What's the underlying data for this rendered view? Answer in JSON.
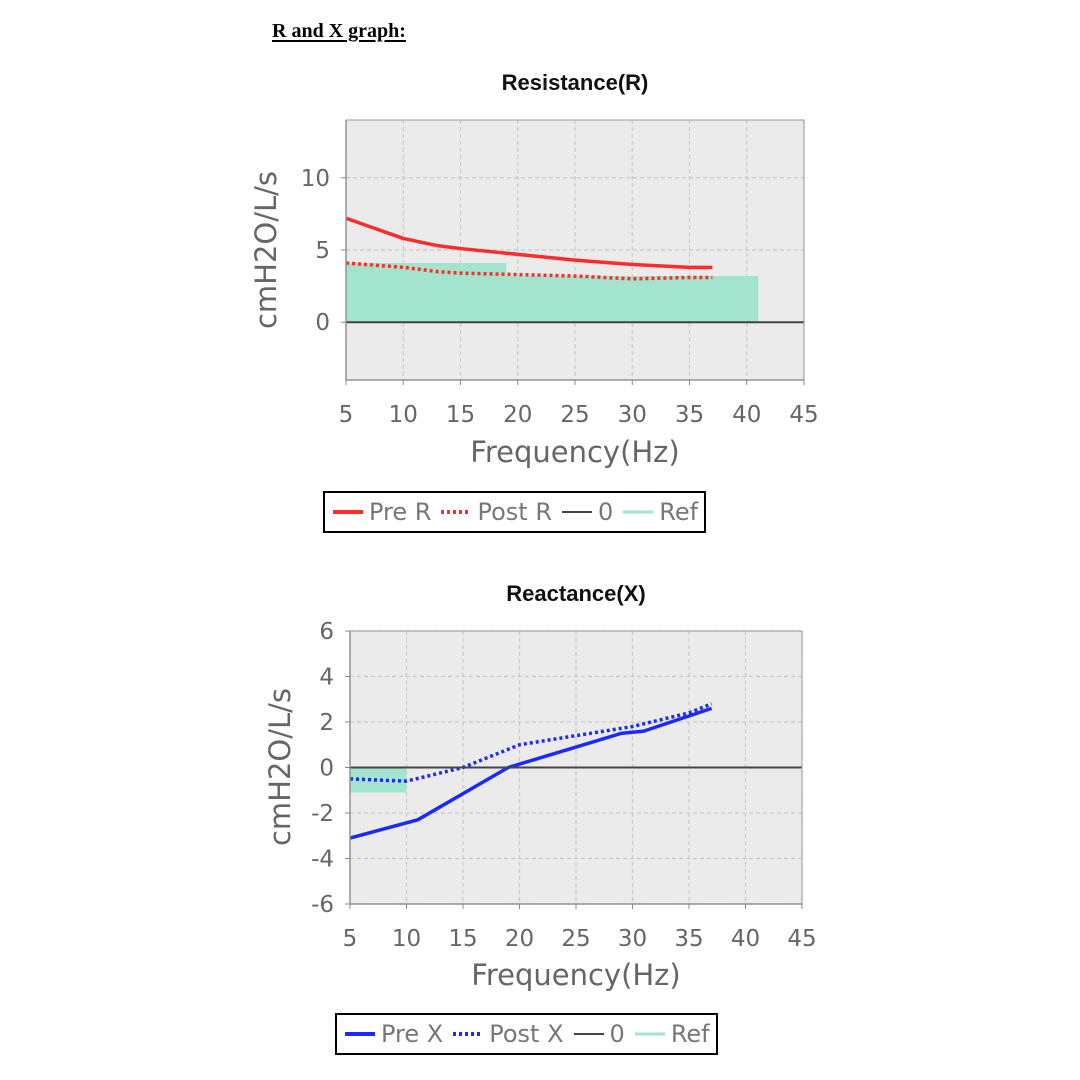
{
  "heading": "R and X graph:",
  "chart_data": [
    {
      "type": "line",
      "title": "Resistance(R)",
      "xlabel": "Frequency(Hz)",
      "ylabel": "cmH2O/L/s",
      "xlim": [
        5,
        45
      ],
      "ylim": [
        -4,
        14
      ],
      "xticks": [
        "5",
        "10",
        "15",
        "20",
        "25",
        "30",
        "35",
        "40",
        "45"
      ],
      "xtick_values": [
        5,
        10,
        15,
        20,
        25,
        30,
        35,
        40,
        45
      ],
      "yticks": [
        "0",
        "5",
        "10"
      ],
      "ytick_values": [
        0,
        5,
        10
      ],
      "grid": true,
      "series": [
        {
          "name": "Pre R",
          "style": "solid",
          "color": "#ff2a2a",
          "x": [
            5,
            10,
            13,
            15,
            20,
            25,
            30,
            35,
            37
          ],
          "y": [
            7.2,
            5.8,
            5.3,
            5.1,
            4.7,
            4.3,
            4.0,
            3.8,
            3.8
          ]
        },
        {
          "name": "Post R",
          "style": "dotted",
          "color": "#ff2a2a",
          "x": [
            5,
            10,
            13,
            15,
            20,
            25,
            30,
            35,
            37
          ],
          "y": [
            4.1,
            3.8,
            3.5,
            3.4,
            3.3,
            3.2,
            3.0,
            3.1,
            3.1
          ]
        },
        {
          "name": "0",
          "style": "solid",
          "color": "#444444",
          "x": [
            5,
            45
          ],
          "y": [
            0,
            0
          ]
        }
      ],
      "ref_bands": [
        {
          "x": [
            5,
            19
          ],
          "y": [
            0,
            4.1
          ]
        },
        {
          "x": [
            19,
            41
          ],
          "y": [
            0,
            3.2
          ]
        }
      ],
      "ref_color": "#a3e4ce",
      "legend": [
        "Pre R",
        "Post R",
        "0",
        "Ref"
      ]
    },
    {
      "type": "line",
      "title": "Reactance(X)",
      "xlabel": "Frequency(Hz)",
      "ylabel": "cmH2O/L/s",
      "xlim": [
        5,
        45
      ],
      "ylim": [
        -6,
        6
      ],
      "xticks": [
        "5",
        "10",
        "15",
        "20",
        "25",
        "30",
        "35",
        "40",
        "45"
      ],
      "xtick_values": [
        5,
        10,
        15,
        20,
        25,
        30,
        35,
        40,
        45
      ],
      "yticks": [
        "-6",
        "-4",
        "-2",
        "0",
        "2",
        "4",
        "6"
      ],
      "ytick_values": [
        -6,
        -4,
        -2,
        0,
        2,
        4,
        6
      ],
      "grid": true,
      "series": [
        {
          "name": "Pre X",
          "style": "solid",
          "color": "#1a2aff",
          "x": [
            5,
            11,
            19,
            25,
            29,
            31,
            37
          ],
          "y": [
            -3.1,
            -2.3,
            0.0,
            0.9,
            1.5,
            1.6,
            2.6
          ]
        },
        {
          "name": "Post X",
          "style": "dotted",
          "color": "#1a2aff",
          "x": [
            5,
            10,
            15,
            20,
            25,
            30,
            35,
            37
          ],
          "y": [
            -0.5,
            -0.6,
            0.0,
            1.0,
            1.4,
            1.8,
            2.4,
            2.8
          ]
        },
        {
          "name": "0",
          "style": "solid",
          "color": "#444444",
          "x": [
            5,
            45
          ],
          "y": [
            0,
            0
          ]
        }
      ],
      "ref_bands": [
        {
          "x": [
            5,
            10
          ],
          "y": [
            -1.1,
            0
          ]
        }
      ],
      "ref_color": "#a3e4ce",
      "legend": [
        "Pre X",
        "Post X",
        "0",
        "Ref"
      ]
    }
  ]
}
